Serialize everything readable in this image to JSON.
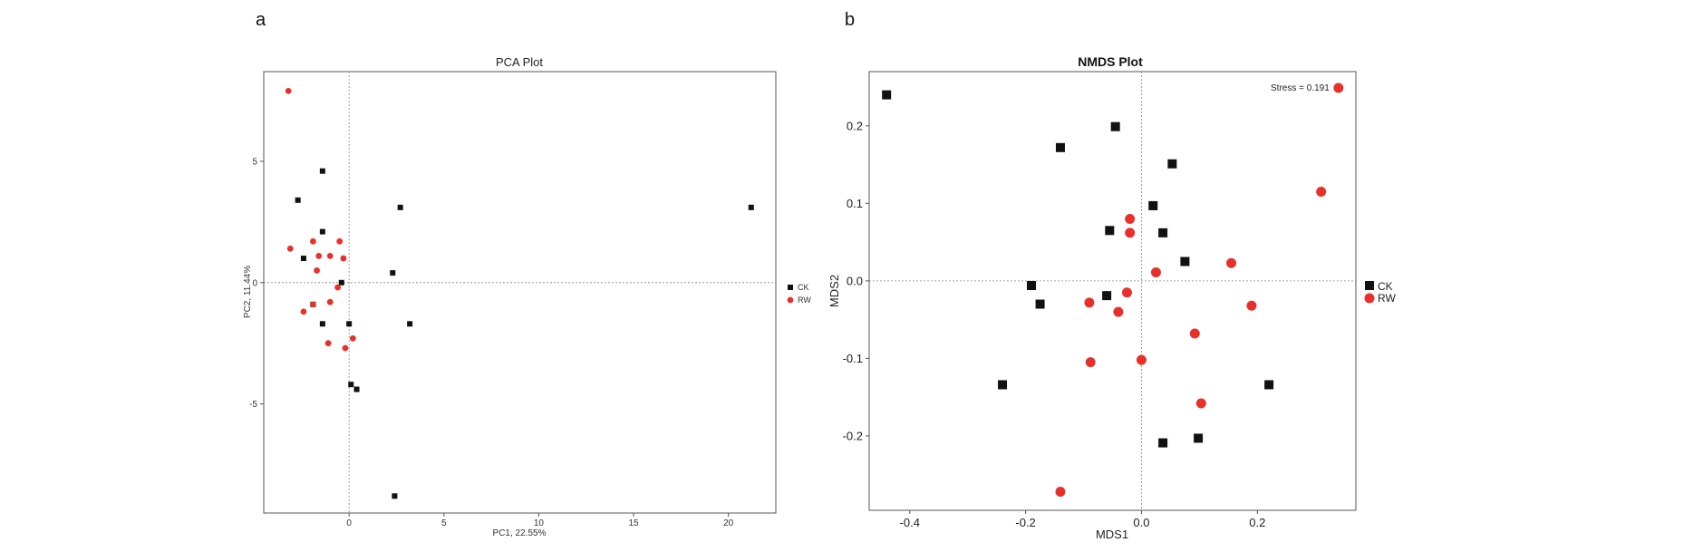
{
  "panels": {
    "a": {
      "letter": "a"
    },
    "b": {
      "letter": "b"
    }
  },
  "colors": {
    "CK": "#111111",
    "RW": "#e8302a"
  },
  "chart_data": [
    {
      "type": "scatter",
      "title": "PCA Plot",
      "xlabel": "PC1, 22.55%",
      "ylabel": "PC2, 11.44%",
      "xlim": [
        -4.5,
        22.5
      ],
      "ylim": [
        -9.5,
        8.7
      ],
      "xticks": [
        0,
        5,
        10,
        15,
        20
      ],
      "yticks": [
        -5,
        0,
        5
      ],
      "grid": false,
      "zero_lines": true,
      "legend": "right",
      "series": [
        {
          "name": "CK",
          "marker": "square",
          "x": [
            -1.4,
            -2.7,
            2.7,
            -2.4,
            -1.4,
            -0.4,
            2.3,
            -1.9,
            -1.4,
            0.0,
            3.2,
            0.1,
            0.4,
            2.4,
            21.2
          ],
          "y": [
            4.6,
            3.4,
            3.1,
            1.0,
            2.1,
            0.0,
            0.4,
            -0.9,
            -1.7,
            -1.7,
            -1.7,
            -4.2,
            -4.4,
            -8.8,
            3.1
          ]
        },
        {
          "name": "RW",
          "marker": "circle",
          "x": [
            -3.2,
            -3.1,
            -1.9,
            -0.5,
            -1.6,
            -1.0,
            -0.3,
            -1.7,
            -0.6,
            -1.9,
            -2.4,
            -1.0,
            0.2,
            -1.1,
            -0.2
          ],
          "y": [
            7.9,
            1.4,
            1.7,
            1.7,
            1.1,
            1.1,
            1.0,
            0.5,
            -0.2,
            -0.9,
            -1.2,
            -0.8,
            -2.3,
            -2.5,
            -2.7
          ]
        }
      ]
    },
    {
      "type": "scatter",
      "title": "NMDS Plot",
      "xlabel": "MDS1",
      "ylabel": "MDS2",
      "xlim": [
        -0.47,
        0.37
      ],
      "ylim": [
        -0.296,
        0.27
      ],
      "xticks": [
        -0.4,
        -0.2,
        0.0,
        0.2
      ],
      "xtick_labels": [
        "-0.4",
        "-0.2",
        "0.0",
        "0.2"
      ],
      "yticks": [
        -0.2,
        -0.1,
        0.0,
        0.1,
        0.2
      ],
      "ytick_labels": [
        "-0.2",
        "-0.1",
        "0.0",
        "0.1",
        "0.2"
      ],
      "annotation": "Stress = 0.191",
      "grid": false,
      "zero_lines": true,
      "legend": "right",
      "series": [
        {
          "name": "CK",
          "marker": "square",
          "x": [
            -0.44,
            -0.14,
            -0.045,
            0.053,
            0.02,
            -0.055,
            0.037,
            0.075,
            -0.19,
            -0.175,
            -0.06,
            -0.24,
            0.22,
            0.037,
            0.098
          ],
          "y": [
            0.24,
            0.172,
            0.199,
            0.151,
            0.097,
            0.065,
            0.062,
            0.025,
            -0.006,
            -0.03,
            -0.019,
            -0.134,
            -0.134,
            -0.209,
            -0.203
          ]
        },
        {
          "name": "RW",
          "marker": "circle",
          "x": [
            0.34,
            0.31,
            -0.02,
            -0.02,
            0.025,
            0.155,
            -0.09,
            -0.025,
            -0.04,
            0.19,
            0.092,
            -0.088,
            0.0,
            0.103,
            -0.14
          ],
          "y": [
            0.249,
            0.115,
            0.08,
            0.062,
            0.011,
            0.023,
            -0.028,
            -0.015,
            -0.04,
            -0.032,
            -0.068,
            -0.105,
            -0.102,
            -0.158,
            -0.272
          ]
        }
      ]
    }
  ]
}
